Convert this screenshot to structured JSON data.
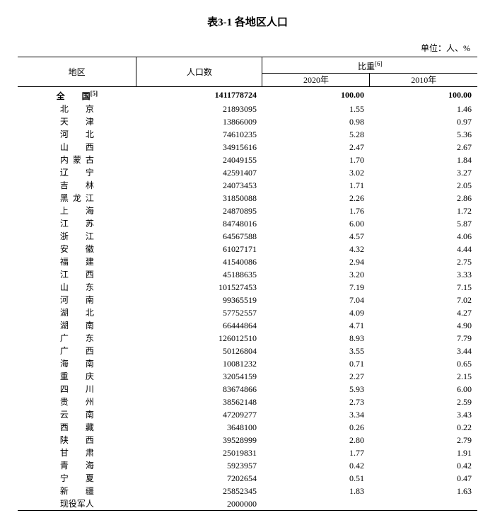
{
  "title": "表3-1 各地区人口",
  "unit_label": "单位：人、%",
  "columns": {
    "region": "地区",
    "population": "人口数",
    "weight": "比重",
    "weight_sup": "[6]",
    "year_2020": "2020年",
    "year_2010": "2010年"
  },
  "col_widths": {
    "region": 160,
    "population": 170,
    "w1": 145,
    "w2": 145
  },
  "typography": {
    "body_fontsize": 12,
    "title_fontsize": 15,
    "line_height": 16
  },
  "colors": {
    "text": "#000000",
    "background": "#ffffff",
    "border": "#000000"
  },
  "border_widths": {
    "outer": 1.5,
    "inner": 1
  },
  "total_row": {
    "region": "全　国",
    "region_sup": "[5]",
    "population": "1411778724",
    "w2020": "100.00",
    "w2010": "100.00",
    "bold": true
  },
  "rows": [
    {
      "region": "北　京",
      "population": "21893095",
      "w2020": "1.55",
      "w2010": "1.46"
    },
    {
      "region": "天　津",
      "population": "13866009",
      "w2020": "0.98",
      "w2010": "0.97"
    },
    {
      "region": "河　北",
      "population": "74610235",
      "w2020": "5.28",
      "w2010": "5.36"
    },
    {
      "region": "山　西",
      "population": "34915616",
      "w2020": "2.47",
      "w2010": "2.67"
    },
    {
      "region": "内蒙古",
      "population": "24049155",
      "w2020": "1.70",
      "w2010": "1.84"
    },
    {
      "region": "辽　宁",
      "population": "42591407",
      "w2020": "3.02",
      "w2010": "3.27"
    },
    {
      "region": "吉　林",
      "population": "24073453",
      "w2020": "1.71",
      "w2010": "2.05"
    },
    {
      "region": "黑龙江",
      "population": "31850088",
      "w2020": "2.26",
      "w2010": "2.86"
    },
    {
      "region": "上　海",
      "population": "24870895",
      "w2020": "1.76",
      "w2010": "1.72"
    },
    {
      "region": "江　苏",
      "population": "84748016",
      "w2020": "6.00",
      "w2010": "5.87"
    },
    {
      "region": "浙　江",
      "population": "64567588",
      "w2020": "4.57",
      "w2010": "4.06"
    },
    {
      "region": "安　徽",
      "population": "61027171",
      "w2020": "4.32",
      "w2010": "4.44"
    },
    {
      "region": "福　建",
      "population": "41540086",
      "w2020": "2.94",
      "w2010": "2.75"
    },
    {
      "region": "江　西",
      "population": "45188635",
      "w2020": "3.20",
      "w2010": "3.33"
    },
    {
      "region": "山　东",
      "population": "101527453",
      "w2020": "7.19",
      "w2010": "7.15"
    },
    {
      "region": "河　南",
      "population": "99365519",
      "w2020": "7.04",
      "w2010": "7.02"
    },
    {
      "region": "湖　北",
      "population": "57752557",
      "w2020": "4.09",
      "w2010": "4.27"
    },
    {
      "region": "湖　南",
      "population": "66444864",
      "w2020": "4.71",
      "w2010": "4.90"
    },
    {
      "region": "广　东",
      "population": "126012510",
      "w2020": "8.93",
      "w2010": "7.79"
    },
    {
      "region": "广　西",
      "population": "50126804",
      "w2020": "3.55",
      "w2010": "3.44"
    },
    {
      "region": "海　南",
      "population": "10081232",
      "w2020": "0.71",
      "w2010": "0.65"
    },
    {
      "region": "重　庆",
      "population": "32054159",
      "w2020": "2.27",
      "w2010": "2.15"
    },
    {
      "region": "四　川",
      "population": "83674866",
      "w2020": "5.93",
      "w2010": "6.00"
    },
    {
      "region": "贵　州",
      "population": "38562148",
      "w2020": "2.73",
      "w2010": "2.59"
    },
    {
      "region": "云　南",
      "population": "47209277",
      "w2020": "3.34",
      "w2010": "3.43"
    },
    {
      "region": "西　藏",
      "population": "3648100",
      "w2020": "0.26",
      "w2010": "0.22"
    },
    {
      "region": "陕　西",
      "population": "39528999",
      "w2020": "2.80",
      "w2010": "2.79"
    },
    {
      "region": "甘　肃",
      "population": "25019831",
      "w2020": "1.77",
      "w2010": "1.91"
    },
    {
      "region": "青　海",
      "population": "5923957",
      "w2020": "0.42",
      "w2010": "0.42"
    },
    {
      "region": "宁　夏",
      "population": "7202654",
      "w2020": "0.51",
      "w2010": "0.47"
    },
    {
      "region": "新　疆",
      "population": "25852345",
      "w2020": "1.83",
      "w2010": "1.63"
    },
    {
      "region": "现役军人",
      "population": "2000000",
      "w2020": "",
      "w2010": ""
    }
  ]
}
